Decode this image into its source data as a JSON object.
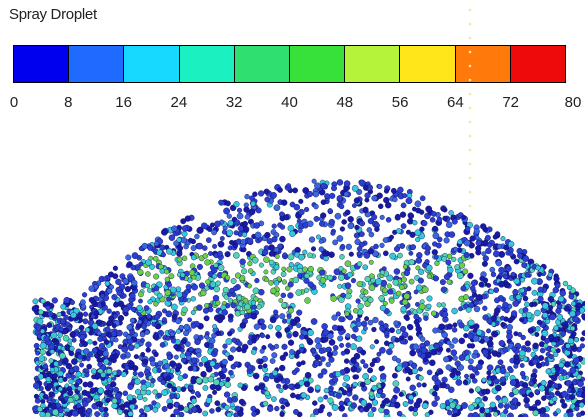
{
  "legend": {
    "title": "Spray Droplet",
    "colors": [
      "#0000ee",
      "#1f6bff",
      "#17d8ff",
      "#1af0c0",
      "#2fe070",
      "#38e03a",
      "#b5f23a",
      "#ffe61a",
      "#ff7a0a",
      "#ee0a0a"
    ],
    "ticks": [
      "0",
      "8",
      "16",
      "24",
      "32",
      "40",
      "48",
      "56",
      "64",
      "72",
      "80"
    ]
  },
  "chart_data": {
    "type": "scatter",
    "title": "Spray Droplet",
    "colorbar_range": [
      0,
      80
    ],
    "colorbar_ticks": [
      0,
      8,
      16,
      24,
      32,
      40,
      48,
      56,
      64,
      72,
      80
    ],
    "description_values": "droplet cloud colored mostly in 0-32 range (blue to cyan/green)"
  }
}
